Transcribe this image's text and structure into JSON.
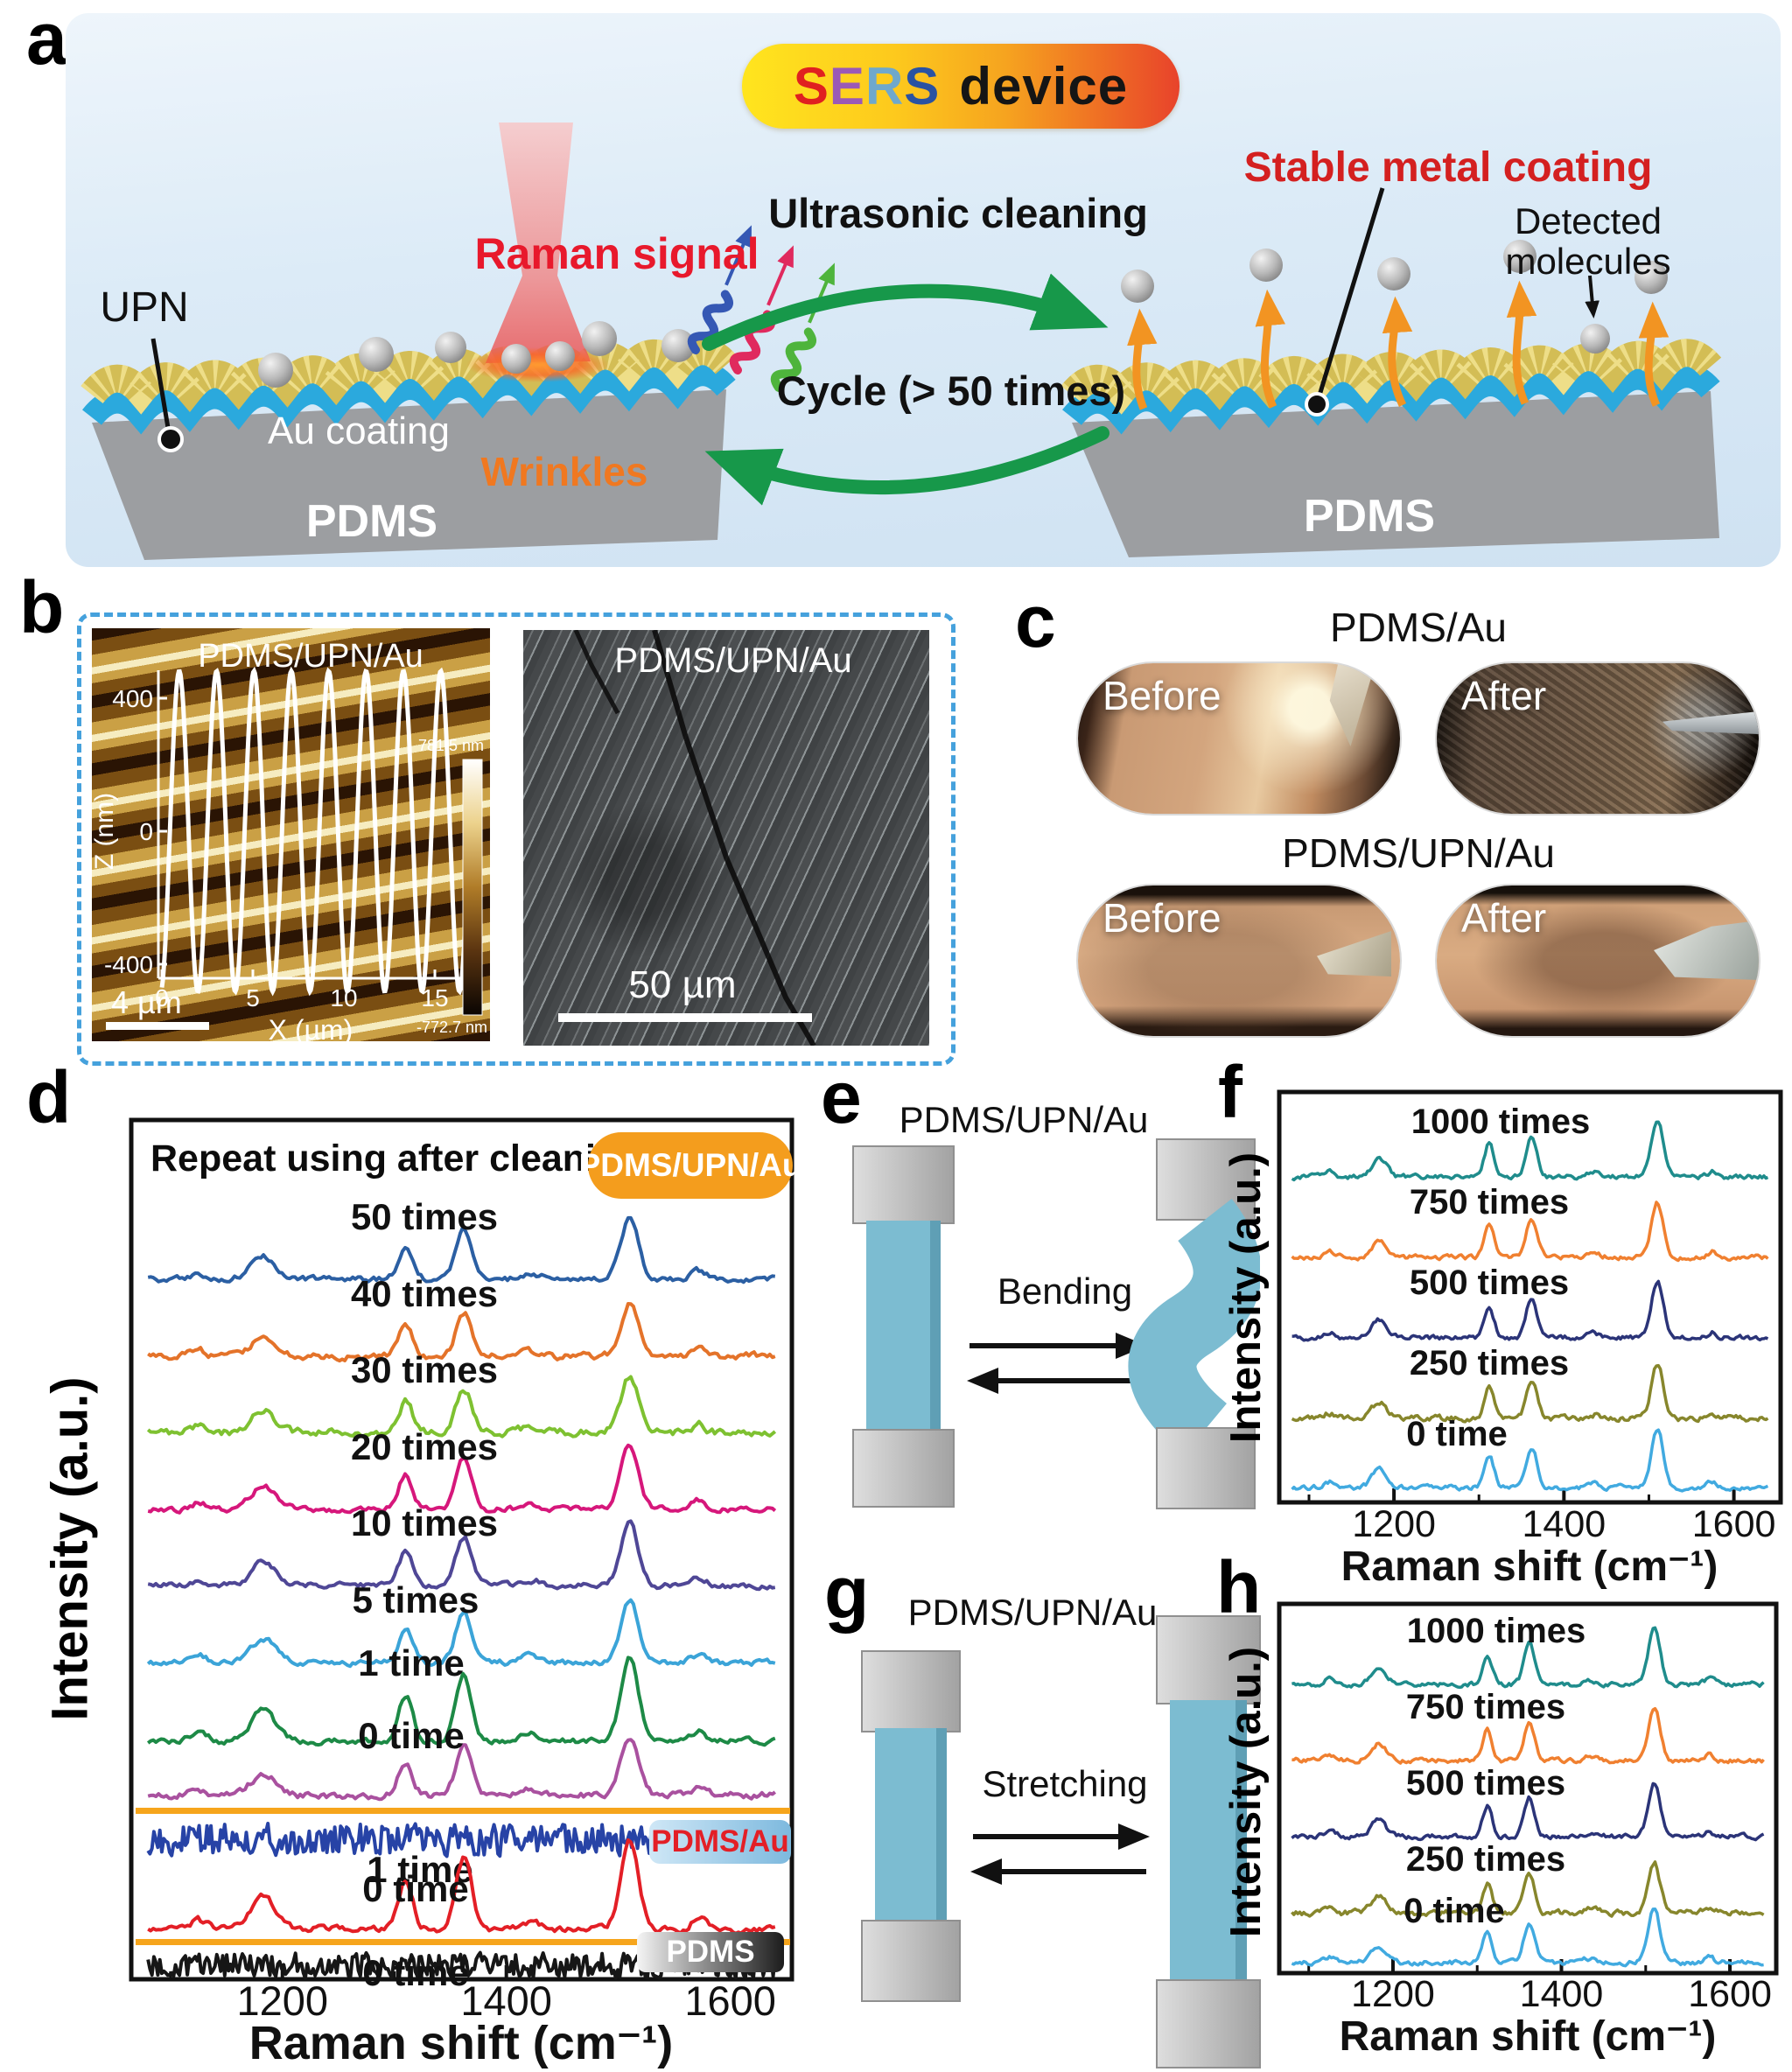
{
  "figure": {
    "labels": {
      "a": "a",
      "b": "b",
      "c": "c",
      "d": "d",
      "e": "e",
      "f": "f",
      "g": "g",
      "h": "h"
    }
  },
  "panel_a": {
    "badge": {
      "s1": "S",
      "e": "E",
      "r": "R",
      "s2": "S",
      "device": "device"
    },
    "upn": "UPN",
    "raman_signal": "Raman signal",
    "au_coating": "Au coating",
    "wrinkles": "Wrinkles",
    "pdms_left": "PDMS",
    "ultrasonic": "Ultrasonic cleaning",
    "cycle": "Cycle (> 50 times)",
    "stable_metal": "Stable metal coating",
    "detected_1": "Detected",
    "detected_2": "molecules",
    "pdms_right": "PDMS"
  },
  "panel_b": {
    "afm": {
      "title": "PDMS/UPN/Au",
      "z_label": "Z (nm)",
      "x_label": "X (µm)",
      "z_ticks": [
        "400",
        "0",
        "-400"
      ],
      "x_ticks": [
        "0",
        "5",
        "10",
        "15"
      ],
      "scale_bar": "4 µm",
      "cbar_max": "781.5 nm",
      "cbar_min": "-772.7 nm"
    },
    "sem": {
      "title": "PDMS/UPN/Au",
      "scale_bar": "50 µm"
    }
  },
  "panel_c": {
    "pdms_au": {
      "title": "PDMS/Au",
      "before": "Before",
      "after": "After"
    },
    "pdms_upn_au": {
      "title": "PDMS/UPN/Au",
      "before": "Before",
      "after": "After"
    }
  },
  "panel_d": {
    "pdms_au_badge": "PDMS/Au",
    "pdms_badge": "PDMS"
  },
  "panel_e": {
    "title": "PDMS/UPN/Au",
    "action": "Bending"
  },
  "panel_g": {
    "title": "PDMS/UPN/Au",
    "action": "Stretching"
  },
  "chart_data": [
    {
      "id": "chart-d",
      "type": "line",
      "header": "Repeat using after cleaning",
      "header_badge": "PDMS/UPN/Au",
      "xlabel": "Raman shift (cm⁻¹)",
      "ylabel": "Intensity (a.u.)",
      "x_range": [
        1080,
        1640
      ],
      "x_axis_range": [
        1065,
        1655
      ],
      "x_ticks": [
        1200,
        1400,
        1600
      ],
      "minor_ticks": [
        1100,
        1300,
        1500
      ],
      "plot": {
        "x0": 120,
        "y0": 15,
        "x1": 875,
        "y1": 997
      },
      "tick_text_y": 1038,
      "xlabel_x": 497,
      "xlabel_y": 1088,
      "tick_font": 47,
      "xlabel_font": 54,
      "label_font": 42,
      "stroke": 4,
      "peaks": [
        [
          1125,
          10,
          0.1
        ],
        [
          1183,
          15,
          0.38
        ],
        [
          1310,
          9,
          0.55
        ],
        [
          1362,
          10,
          0.8
        ],
        [
          1422,
          12,
          0.1
        ],
        [
          1510,
          11,
          1.0
        ],
        [
          1572,
          9,
          0.13
        ]
      ],
      "series": [
        {
          "label": "50 times",
          "color": "#2b5fa3",
          "baseline": 197,
          "amp": 70,
          "noise": 6,
          "seed": 11,
          "peaks": true,
          "label_x": 455,
          "label_y": 140
        },
        {
          "label": "40 times",
          "color": "#e4732a",
          "baseline": 285,
          "amp": 60,
          "noise": 7,
          "seed": 22,
          "peaks": true,
          "label_x": 455,
          "label_y": 228
        },
        {
          "label": "30 times",
          "color": "#7ec131",
          "baseline": 372,
          "amp": 64,
          "noise": 8,
          "seed": 33,
          "peaks": true,
          "label_x": 455,
          "label_y": 315
        },
        {
          "label": "20 times",
          "color": "#d6177b",
          "baseline": 460,
          "amp": 72,
          "noise": 6,
          "seed": 44,
          "peaks": true,
          "label_x": 455,
          "label_y": 403
        },
        {
          "label": "10 times",
          "color": "#4f4796",
          "baseline": 547,
          "amp": 70,
          "noise": 6,
          "seed": 55,
          "peaks": true,
          "label_x": 455,
          "label_y": 490
        },
        {
          "label": "5 times",
          "color": "#3ba4d8",
          "baseline": 635,
          "amp": 72,
          "noise": 6,
          "seed": 66,
          "peaks": true,
          "label_x": 445,
          "label_y": 578
        },
        {
          "label": "1 time",
          "color": "#1d8a46",
          "baseline": 725,
          "amp": 95,
          "noise": 6,
          "seed": 77,
          "peaks": true,
          "label_x": 440,
          "label_y": 650
        },
        {
          "label": "0 time",
          "color": "#a9519f",
          "baseline": 787,
          "amp": 68,
          "noise": 7,
          "seed": 88,
          "peaks": true,
          "label_x": 440,
          "label_y": 733
        },
        {
          "label": "1 time",
          "color": "#2743a6",
          "baseline": 837,
          "amp": 0,
          "noise": 20,
          "seed": 99,
          "peaks": false,
          "spiky": true,
          "label_x": 450,
          "label_y": 886
        },
        {
          "label": "0 time",
          "color": "#e31f26",
          "baseline": 940,
          "amp": 100,
          "noise": 7,
          "seed": 111,
          "peaks": true,
          "label_x": 445,
          "label_y": 908
        },
        {
          "label": "0 time",
          "color": "#161616",
          "baseline": 981,
          "amp": 0,
          "noise": 16,
          "seed": 122,
          "peaks": false,
          "spiky": true,
          "label_x": 445,
          "label_y": 1004
        }
      ]
    },
    {
      "id": "chart-f",
      "type": "line",
      "xlabel": "Raman shift (cm⁻¹)",
      "ylabel": "Intensity (a.u.)",
      "x_range": [
        1080,
        1640
      ],
      "x_axis_range": [
        1065,
        1655
      ],
      "x_ticks": [
        1200,
        1400,
        1600
      ],
      "minor_ticks": [
        1100,
        1300,
        1500
      ],
      "plot": {
        "x0": 32,
        "y0": 8,
        "x1": 605,
        "y1": 477
      },
      "tick_text_y": 516,
      "xlabel_x": 318,
      "xlabel_y": 566,
      "tick_font": 43,
      "xlabel_font": 48,
      "label_font": 40,
      "stroke": 3.5,
      "peaks": [
        [
          1125,
          9,
          0.1
        ],
        [
          1183,
          12,
          0.32
        ],
        [
          1312,
          8,
          0.58
        ],
        [
          1362,
          9,
          0.72
        ],
        [
          1435,
          10,
          0.08
        ],
        [
          1510,
          10,
          1.0
        ],
        [
          1575,
          8,
          0.1
        ]
      ],
      "series": [
        {
          "label": "1000 times",
          "color": "#1f8c8c",
          "baseline": 105,
          "amp": 66,
          "noise": 5,
          "seed": 7,
          "peaks": true,
          "label_x": 285,
          "label_y": 55
        },
        {
          "label": "750 times",
          "color": "#f08030",
          "baseline": 197,
          "amp": 62,
          "noise": 5,
          "seed": 17,
          "peaks": true,
          "label_x": 272,
          "label_y": 147
        },
        {
          "label": "500 times",
          "color": "#2b3478",
          "baseline": 289,
          "amp": 64,
          "noise": 5,
          "seed": 27,
          "peaks": true,
          "label_x": 272,
          "label_y": 239
        },
        {
          "label": "250 times",
          "color": "#87862c",
          "baseline": 381,
          "amp": 60,
          "noise": 6,
          "seed": 37,
          "peaks": true,
          "label_x": 272,
          "label_y": 331
        },
        {
          "label": "0 time",
          "color": "#41aae0",
          "baseline": 460,
          "amp": 64,
          "noise": 5,
          "seed": 47,
          "peaks": true,
          "label_x": 235,
          "label_y": 412
        }
      ]
    },
    {
      "id": "chart-h",
      "type": "line",
      "xlabel": "Raman shift (cm⁻¹)",
      "ylabel": "Intensity (a.u.)",
      "x_range": [
        1080,
        1640
      ],
      "x_axis_range": [
        1065,
        1655
      ],
      "x_ticks": [
        1200,
        1400,
        1600
      ],
      "minor_ticks": [
        1100,
        1300,
        1500
      ],
      "plot": {
        "x0": 32,
        "y0": 8,
        "x1": 600,
        "y1": 430
      },
      "tick_text_y": 468,
      "xlabel_x": 316,
      "xlabel_y": 518,
      "tick_font": 43,
      "xlabel_font": 48,
      "label_font": 40,
      "stroke": 3.5,
      "peaks": [
        [
          1125,
          9,
          0.1
        ],
        [
          1183,
          12,
          0.32
        ],
        [
          1312,
          8,
          0.58
        ],
        [
          1362,
          9,
          0.74
        ],
        [
          1435,
          10,
          0.08
        ],
        [
          1510,
          10,
          1.0
        ],
        [
          1575,
          8,
          0.1
        ]
      ],
      "series": [
        {
          "label": "1000 times",
          "color": "#1f8c8c",
          "baseline": 100,
          "amp": 62,
          "noise": 5,
          "seed": 57,
          "peaks": true,
          "label_x": 280,
          "label_y": 52
        },
        {
          "label": "750 times",
          "color": "#f08030",
          "baseline": 187,
          "amp": 60,
          "noise": 5,
          "seed": 67,
          "peaks": true,
          "label_x": 268,
          "label_y": 139
        },
        {
          "label": "500 times",
          "color": "#2b3478",
          "baseline": 274,
          "amp": 60,
          "noise": 5,
          "seed": 77,
          "peaks": true,
          "label_x": 268,
          "label_y": 226
        },
        {
          "label": "250 times",
          "color": "#87862c",
          "baseline": 361,
          "amp": 58,
          "noise": 6,
          "seed": 87,
          "peaks": true,
          "label_x": 268,
          "label_y": 313
        },
        {
          "label": "0 time",
          "color": "#41aae0",
          "baseline": 418,
          "amp": 62,
          "noise": 5,
          "seed": 97,
          "peaks": true,
          "label_x": 232,
          "label_y": 372
        }
      ]
    },
    {
      "id": "afm-inset",
      "type": "line",
      "title": "PDMS/UPN/Au",
      "xlabel": "X (µm)",
      "ylabel": "Z (nm)",
      "x_ticks": [
        0,
        5,
        10,
        15
      ],
      "z_ticks": [
        400,
        0,
        -400
      ],
      "amplitude_nm": 500,
      "period_um": 2.1,
      "cycles": 8.15,
      "ylim": [
        -772.7,
        781.5
      ]
    }
  ],
  "colors": {
    "accent_orange": "#f49d1d",
    "divider": "#f6a51c",
    "green_arrow": "#17984a",
    "raman_red": "#e8192c",
    "stable_red": "#d42020",
    "blue_layer": "#2ba9dd",
    "gold": "#d3bd55",
    "pdms_gray": "#9c9ea1",
    "dashed_border": "#45a1dc",
    "sers_s1": "#e02020",
    "sers_e": "#9b59b6",
    "sers_r": "#6fa8cc",
    "sers_s2": "#2a52a2"
  }
}
